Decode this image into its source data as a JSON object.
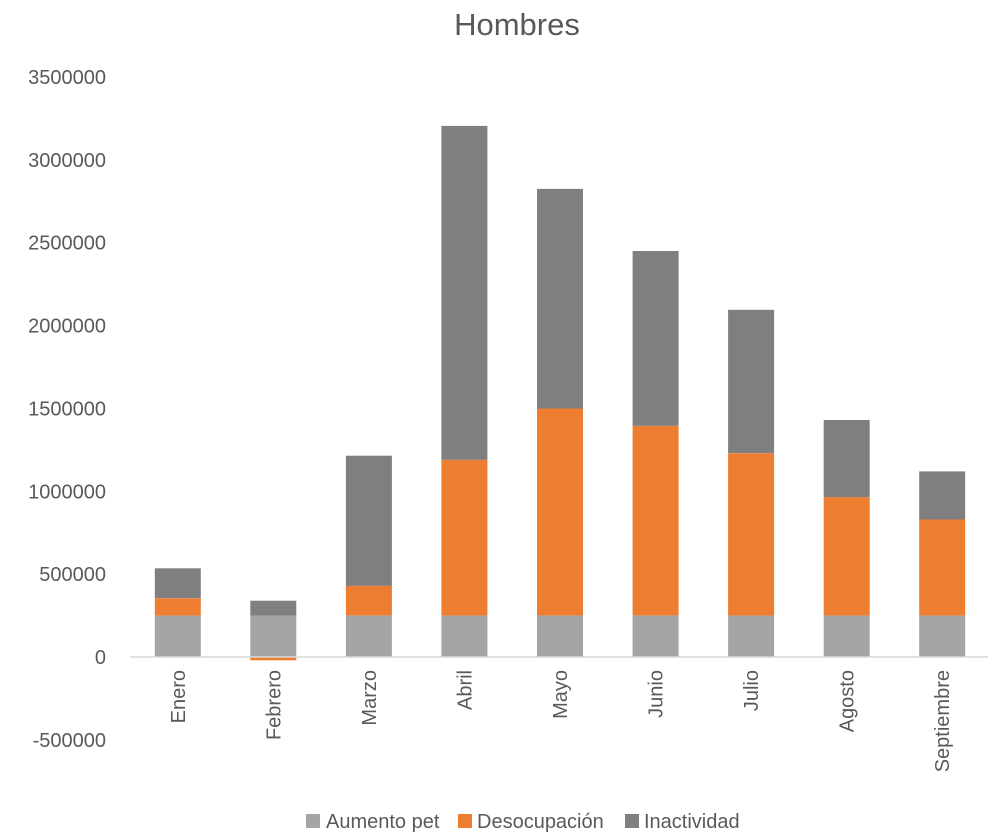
{
  "chart_data": {
    "type": "bar",
    "stacked": true,
    "title": "Hombres",
    "xlabel": "",
    "ylabel": "",
    "categories": [
      "Enero",
      "Febrero",
      "Marzo",
      "Abril",
      "Mayo",
      "Junio",
      "Julio",
      "Agosto",
      "Septiembre"
    ],
    "ylim": [
      -500000,
      3500000
    ],
    "yticks": [
      -500000,
      0,
      500000,
      1000000,
      1500000,
      2000000,
      2500000,
      3000000,
      3500000
    ],
    "series": [
      {
        "name": "Aumento pet",
        "color": "#a5a5a5",
        "values": [
          250000,
          250000,
          250000,
          250000,
          250000,
          250000,
          250000,
          250000,
          250000
        ]
      },
      {
        "name": "Desocupación",
        "color": "#ed7d31",
        "values": [
          105000,
          -20000,
          180000,
          940000,
          1250000,
          1145000,
          980000,
          715000,
          580000
        ]
      },
      {
        "name": "Inactividad",
        "color": "#7f7f7f",
        "values": [
          180000,
          90000,
          785000,
          2015000,
          1325000,
          1055000,
          865000,
          465000,
          290000
        ]
      }
    ],
    "grid": false,
    "legend_position": "bottom"
  }
}
